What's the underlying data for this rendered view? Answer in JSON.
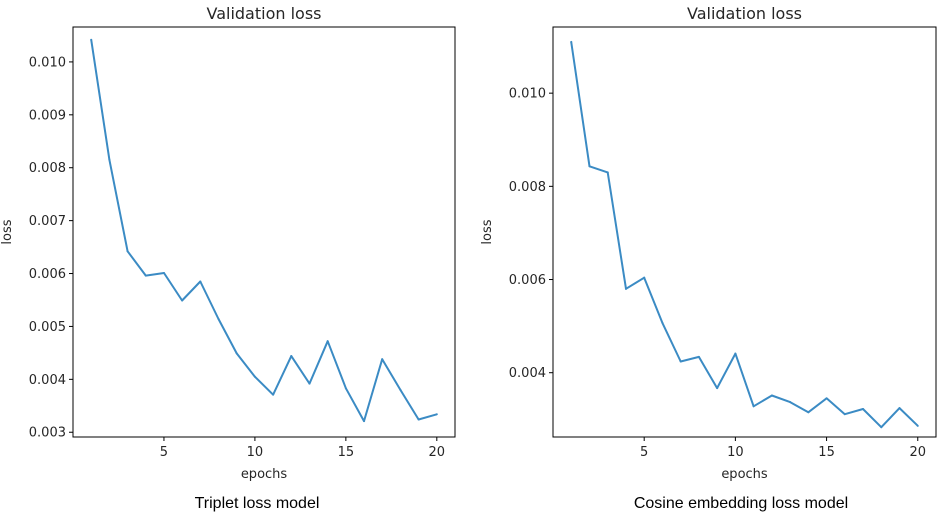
{
  "colors": {
    "line": "#3b8bc4",
    "text": "#262626"
  },
  "chart_data": [
    {
      "type": "line",
      "title": "Validation loss",
      "xlabel": "epochs",
      "ylabel": "loss",
      "caption": "Triplet loss model",
      "xlim": [
        0.0,
        21.0
      ],
      "ylim": [
        0.00291,
        0.01066
      ],
      "xticks": [
        5,
        10,
        15,
        20
      ],
      "xtick_labels": [
        "5",
        "10",
        "15",
        "20"
      ],
      "yticks": [
        0.003,
        0.004,
        0.005,
        0.006,
        0.007,
        0.008,
        0.009,
        0.01
      ],
      "ytick_labels": [
        "0.003",
        "0.004",
        "0.005",
        "0.006",
        "0.007",
        "0.008",
        "0.009",
        "0.010"
      ],
      "x": [
        1,
        2,
        3,
        4,
        5,
        6,
        7,
        8,
        9,
        10,
        11,
        12,
        13,
        14,
        15,
        16,
        17,
        18,
        19,
        20
      ],
      "values": [
        0.01042,
        0.00815,
        0.00642,
        0.00596,
        0.00601,
        0.00549,
        0.00585,
        0.00514,
        0.00449,
        0.00405,
        0.00371,
        0.00444,
        0.00392,
        0.00472,
        0.00383,
        0.00321,
        0.00438,
        0.0038,
        0.00324,
        0.00334
      ]
    },
    {
      "type": "line",
      "title": "Validation loss",
      "xlabel": "epochs",
      "ylabel": "loss",
      "caption": "Cosine embedding loss model",
      "xlim": [
        0.0,
        21.0
      ],
      "ylim": [
        0.00262,
        0.01142
      ],
      "xticks": [
        5,
        10,
        15,
        20
      ],
      "xtick_labels": [
        "5",
        "10",
        "15",
        "20"
      ],
      "yticks": [
        0.004,
        0.006,
        0.008,
        0.01
      ],
      "ytick_labels": [
        "0.004",
        "0.006",
        "0.008",
        "0.010"
      ],
      "x": [
        1,
        2,
        3,
        4,
        5,
        6,
        7,
        8,
        9,
        10,
        11,
        12,
        13,
        14,
        15,
        16,
        17,
        18,
        19,
        20
      ],
      "values": [
        0.0111,
        0.00843,
        0.0083,
        0.0058,
        0.00604,
        0.00507,
        0.00424,
        0.00434,
        0.00367,
        0.00441,
        0.00328,
        0.00351,
        0.00337,
        0.00315,
        0.00345,
        0.00311,
        0.00322,
        0.00283,
        0.00324,
        0.00286
      ]
    }
  ]
}
